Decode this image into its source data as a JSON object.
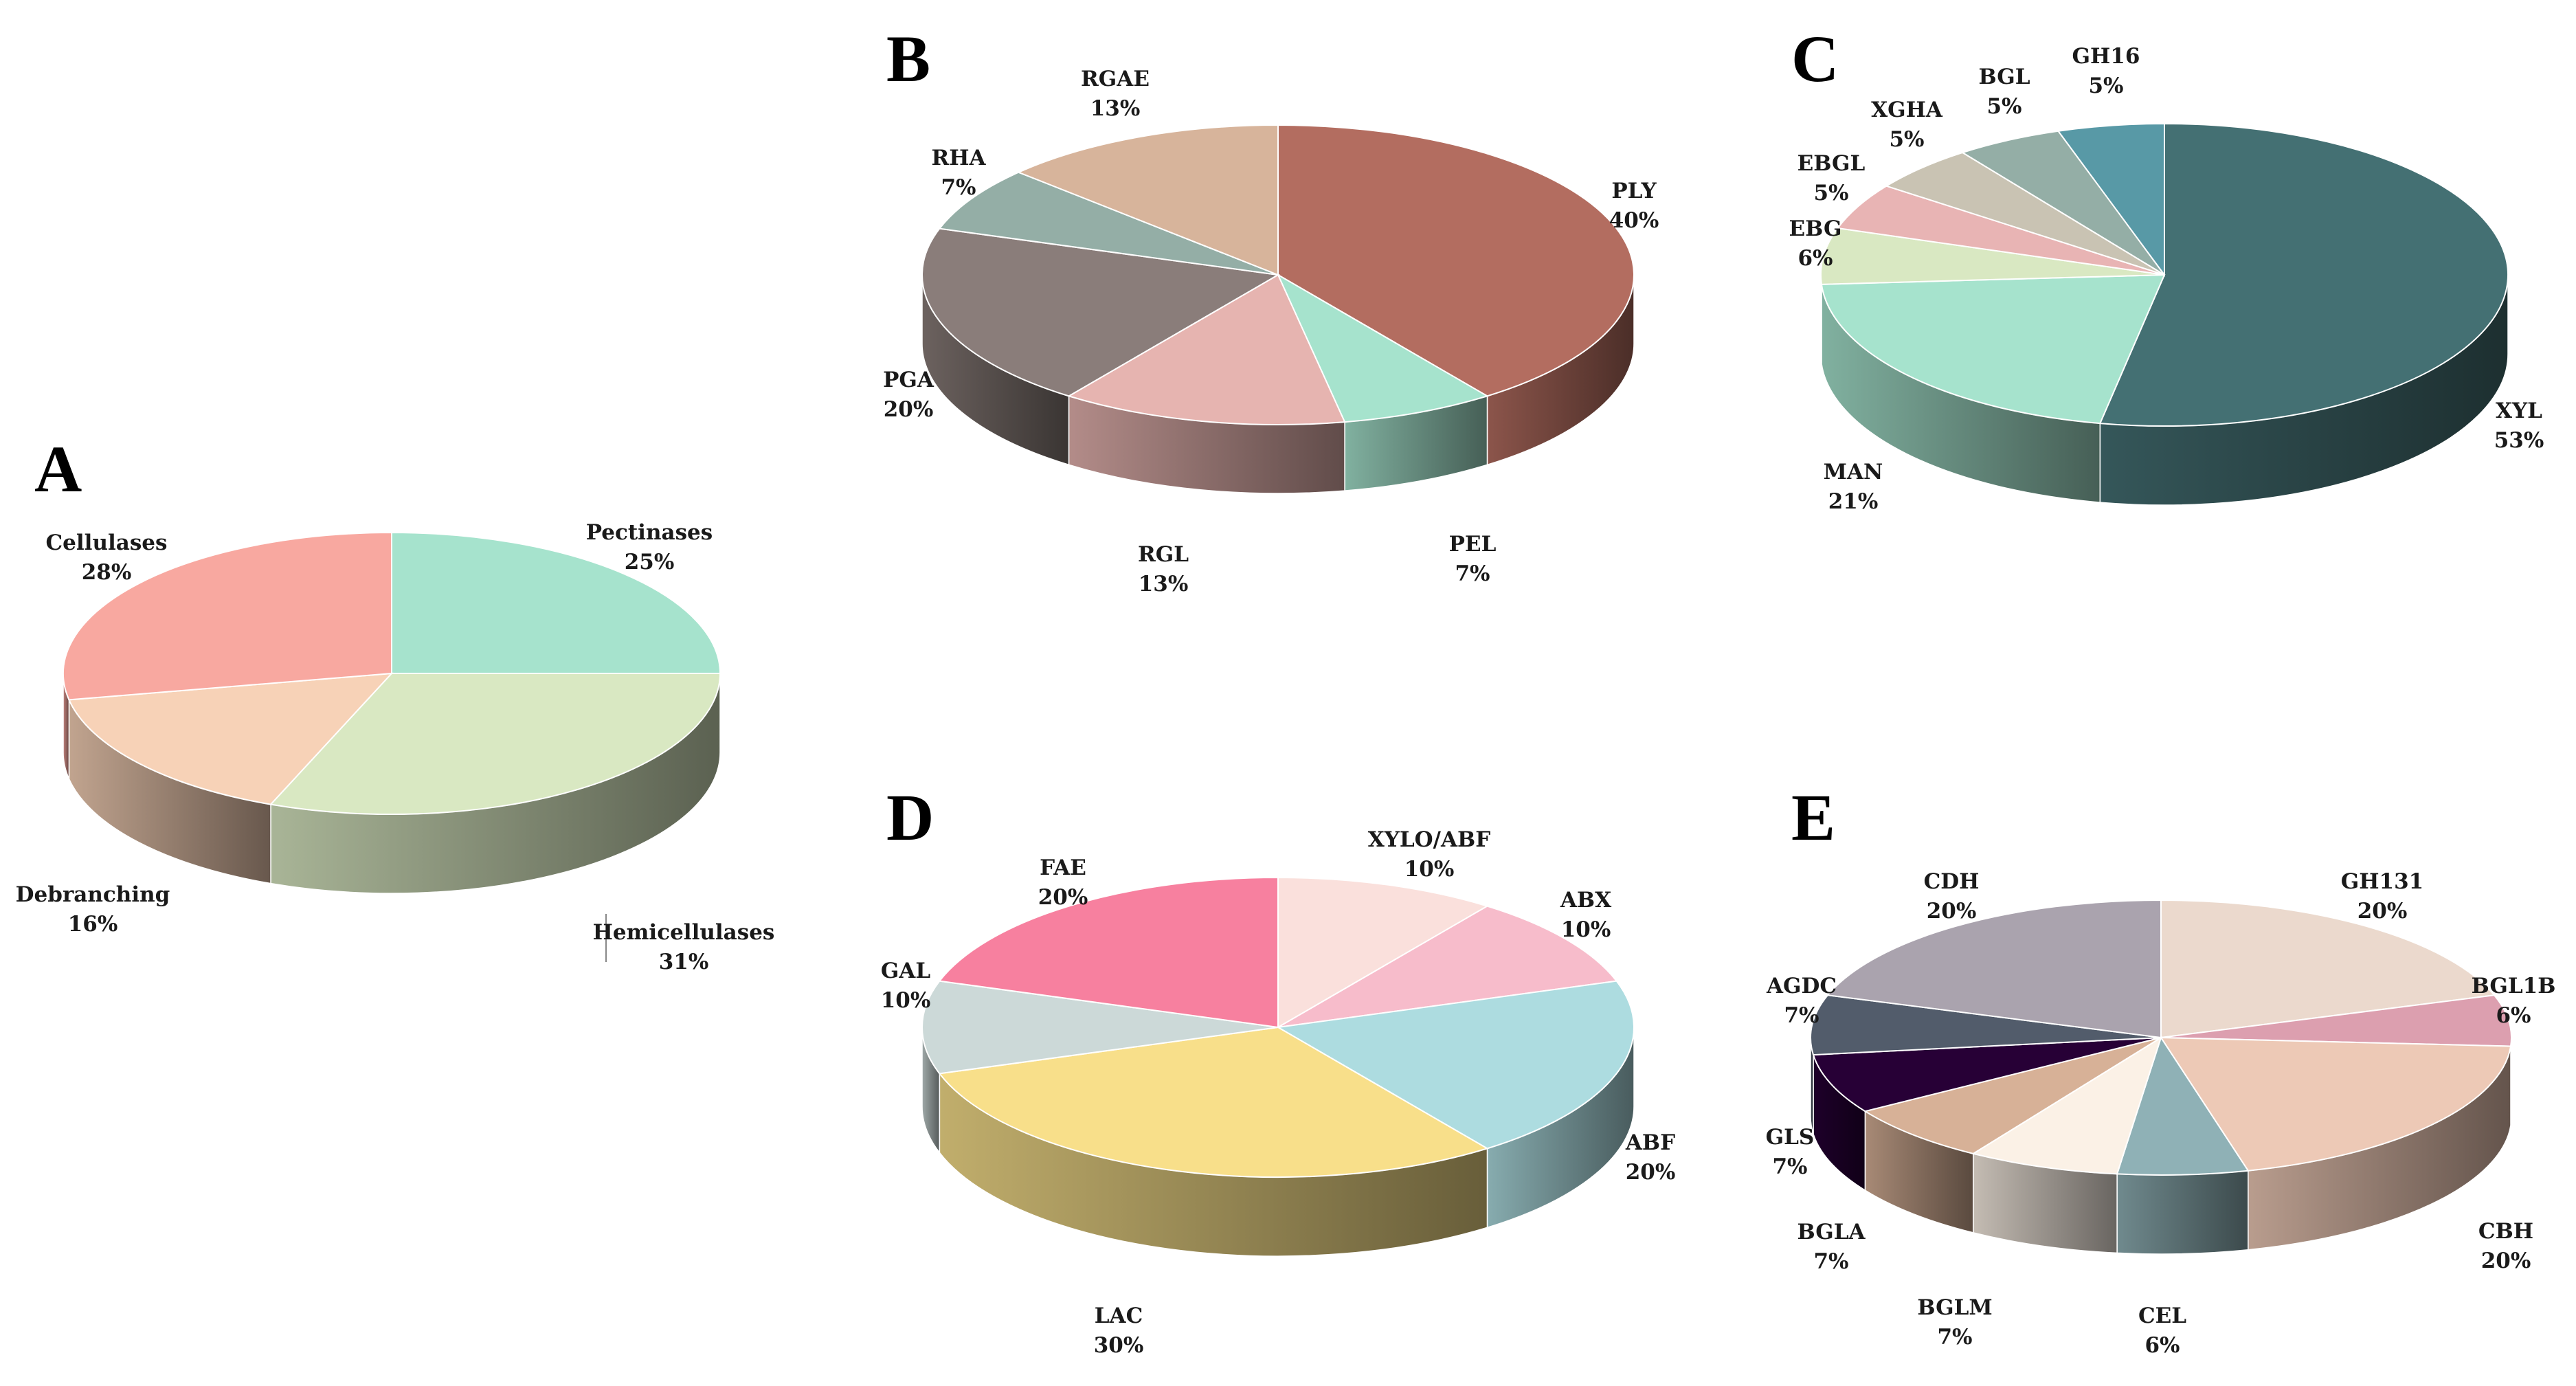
{
  "chart_data": [
    {
      "panel": "A",
      "type": "pie",
      "slices": [
        {
          "label": "Pectinases",
          "value": 25,
          "value_label": "25%",
          "color": "#a6e3cd"
        },
        {
          "label": "Hemicellulases",
          "value": 31,
          "value_label": "31%",
          "color": "#d9e8c2"
        },
        {
          "label": "Debranching",
          "value": 16,
          "value_label": "16%",
          "color": "#f7d2b7"
        },
        {
          "label": "Cellulases",
          "value": 28,
          "value_label": "28%",
          "color": "#f8a8a0"
        }
      ]
    },
    {
      "panel": "B",
      "type": "pie",
      "slices": [
        {
          "label": "PLY",
          "value": 40,
          "value_label": "40%",
          "color": "#b36d60"
        },
        {
          "label": "PEL",
          "value": 7,
          "value_label": "7%",
          "color": "#a6e3cd"
        },
        {
          "label": "RGL",
          "value": 13,
          "value_label": "13%",
          "color": "#e6b4b0"
        },
        {
          "label": "PGA",
          "value": 20,
          "value_label": "20%",
          "color": "#8a7d7a"
        },
        {
          "label": "RHA",
          "value": 7,
          "value_label": "7%",
          "color": "#94aea6"
        },
        {
          "label": "RGAE",
          "value": 13,
          "value_label": "13%",
          "color": "#d7b49b"
        }
      ]
    },
    {
      "panel": "C",
      "type": "pie",
      "slices": [
        {
          "label": "XYL",
          "value": 53,
          "value_label": "53%",
          "color": "#447073"
        },
        {
          "label": "MAN",
          "value": 21,
          "value_label": "21%",
          "color": "#a6e3cd"
        },
        {
          "label": "EBG",
          "value": 6,
          "value_label": "6%",
          "color": "#d9e8c2"
        },
        {
          "label": "EBGL",
          "value": 5,
          "value_label": "5%",
          "color": "#e8b4b4"
        },
        {
          "label": "XGHA",
          "value": 5,
          "value_label": "5%",
          "color": "#c9c3b3"
        },
        {
          "label": "BGL",
          "value": 5,
          "value_label": "5%",
          "color": "#94aea6"
        },
        {
          "label": "GH16",
          "value": 5,
          "value_label": "5%",
          "color": "#5899a6"
        }
      ]
    },
    {
      "panel": "D",
      "type": "pie",
      "slices": [
        {
          "label": "XYLO/ABF",
          "value": 10,
          "value_label": "10%",
          "color": "#fae0dc"
        },
        {
          "label": "ABX",
          "value": 10,
          "value_label": "10%",
          "color": "#f7bccb"
        },
        {
          "label": "ABF",
          "value": 20,
          "value_label": "20%",
          "color": "#addce0"
        },
        {
          "label": "LAC",
          "value": 30,
          "value_label": "30%",
          "color": "#f8df8a"
        },
        {
          "label": "GAL",
          "value": 10,
          "value_label": "10%",
          "color": "#ccd9d8"
        },
        {
          "label": "FAE",
          "value": 20,
          "value_label": "20%",
          "color": "#f7809f"
        }
      ]
    },
    {
      "panel": "E",
      "type": "pie",
      "slices": [
        {
          "label": "GH131",
          "value": 20,
          "value_label": "20%",
          "color": "#ebd9cd"
        },
        {
          "label": "BGL1B",
          "value": 6,
          "value_label": "6%",
          "color": "#dc9faf"
        },
        {
          "label": "CBH",
          "value": 20,
          "value_label": "20%",
          "color": "#edc9b6"
        },
        {
          "label": "CEL",
          "value": 6,
          "value_label": "6%",
          "color": "#8fb1b6"
        },
        {
          "label": "BGLM",
          "value": 7,
          "value_label": "7%",
          "color": "#fbf1e6"
        },
        {
          "label": "BGLA",
          "value": 7,
          "value_label": "7%",
          "color": "#d7b197"
        },
        {
          "label": "GLS",
          "value": 7,
          "value_label": "7%",
          "color": "#270036"
        },
        {
          "label": "AGDC",
          "value": 7,
          "value_label": "7%",
          "color": "#525c6b"
        },
        {
          "label": "CDH",
          "value": 20,
          "value_label": "20%",
          "color": "#aaa3ae"
        }
      ]
    }
  ]
}
